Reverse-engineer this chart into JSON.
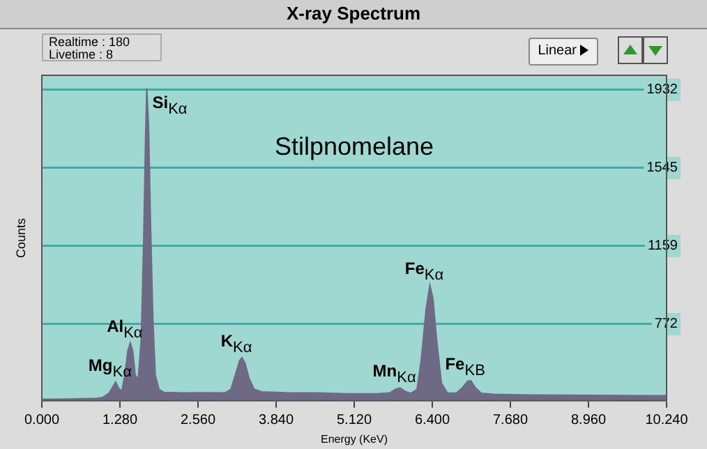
{
  "chart_data": {
    "type": "area",
    "title": "X-ray Spectrum",
    "xlabel": "Energy (KeV)",
    "ylabel": "Counts",
    "annotations": [
      "Realtime : 180",
      "Livetime : 8",
      "Linear",
      "Stilpnomelane",
      {
        "text": "Si$_{Kα}$",
        "x": 1.72,
        "y": 1940
      },
      {
        "text": "Al$_{Kα}$",
        "x": 1.45,
        "y": 679
      },
      {
        "text": "Mg$_{Kα}$",
        "x": 1.21,
        "y": 486
      },
      {
        "text": "K$_{Kα}$",
        "x": 3.28,
        "y": 607
      },
      {
        "text": "Mn$_{Kα}$",
        "x": 5.87,
        "y": 457
      },
      {
        "text": "Fe$_{Kα}$",
        "x": 6.36,
        "y": 965
      },
      {
        "text": "Fe$_{KB}$",
        "x": 7.03,
        "y": 493
      }
    ],
    "x": [
      0,
      0.5,
      0.9,
      1.0,
      1.1,
      1.16,
      1.21,
      1.26,
      1.31,
      1.36,
      1.41,
      1.45,
      1.49,
      1.53,
      1.58,
      1.63,
      1.67,
      1.7,
      1.72,
      1.75,
      1.78,
      1.82,
      1.86,
      1.92,
      2.0,
      2.3,
      2.6,
      3.0,
      3.1,
      3.17,
      3.24,
      3.28,
      3.33,
      3.4,
      3.48,
      3.6,
      4.0,
      4.5,
      5.0,
      5.5,
      5.7,
      5.8,
      5.87,
      5.95,
      6.05,
      6.15,
      6.22,
      6.3,
      6.36,
      6.41,
      6.47,
      6.55,
      6.65,
      6.8,
      6.9,
      6.98,
      7.03,
      7.1,
      7.2,
      7.4,
      8.0,
      9.0,
      10.0,
      10.24
    ],
    "series": [
      {
        "color": "#6e6a86",
        "values": [
          400,
          402,
          405,
          410,
          430,
          460,
          486,
          455,
          440,
          520,
          640,
          679,
          640,
          520,
          500,
          700,
          1200,
          1700,
          1940,
          1750,
          1300,
          800,
          520,
          450,
          435,
          432,
          433,
          432,
          450,
          520,
          590,
          607,
          580,
          500,
          450,
          437,
          433,
          432,
          428,
          428,
          432,
          450,
          457,
          440,
          430,
          450,
          600,
          850,
          965,
          900,
          700,
          480,
          430,
          432,
          460,
          490,
          493,
          460,
          430,
          425,
          422,
          420,
          418,
          418
        ]
      }
    ],
    "xlim": [
      0,
      10.24
    ],
    "xticks": [
      {
        "value": 0,
        "label": "0.000"
      },
      {
        "value": 1.28,
        "label": "1.280"
      },
      {
        "value": 2.56,
        "label": "2.560"
      },
      {
        "value": 3.84,
        "label": "3.840"
      },
      {
        "value": 5.12,
        "label": "5.120"
      },
      {
        "value": 6.4,
        "label": "6.400"
      },
      {
        "value": 7.68,
        "label": "7.680"
      },
      {
        "value": 8.96,
        "label": "8.960"
      },
      {
        "value": 10.24,
        "label": "10.240"
      }
    ],
    "ylim": [
      393,
      2004
    ],
    "yticks": [
      772,
      1159,
      1545,
      1932
    ],
    "grid": "y"
  }
}
